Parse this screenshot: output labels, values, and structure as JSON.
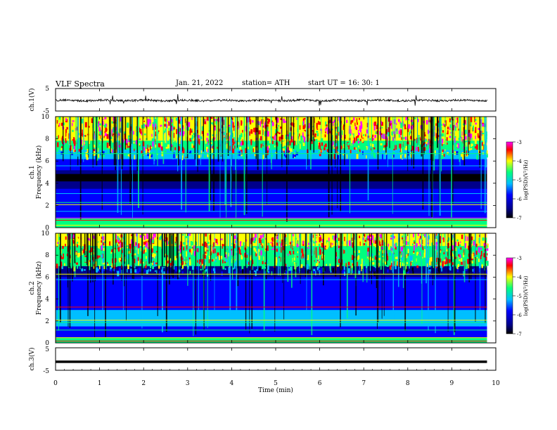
{
  "header": {
    "title": "VLF  Spectra",
    "date": "Jan. 21, 2022",
    "station": "station= ATH",
    "start_ut": "start  UT  =    16: 30: 1"
  },
  "chart_data": [
    {
      "type": "line",
      "panel": "ch1-waveform",
      "ylabel": "ch.1(V)",
      "yticks": [
        "5",
        "-5"
      ],
      "ylim": [
        -5,
        5
      ],
      "xlim": [
        0,
        10
      ],
      "data_xmax": 9.8,
      "baseline": -0.3,
      "description_values": "noisy trace around 0 V with spikes"
    },
    {
      "type": "heatmap",
      "panel": "ch1-spectrogram",
      "ylabel": "ch.1\nFrequency (kHz)",
      "ylabel_lines": [
        "ch.1",
        "Frequency (kHz)"
      ],
      "yticks": [
        0,
        2,
        4,
        6,
        8,
        10
      ],
      "ylim": [
        0,
        10
      ],
      "xlim": [
        0,
        10
      ],
      "data_xmax": 9.8,
      "colorbar": {
        "label": "log(PSD)(V²/Hz)",
        "ticks": [
          "-3",
          "-4",
          "-5",
          "-6",
          "-7"
        ],
        "range": [
          -7,
          -3
        ]
      }
    },
    {
      "type": "heatmap",
      "panel": "ch2-spectrogram",
      "ylabel_lines": [
        "ch.2",
        "Frequency (kHz)"
      ],
      "yticks": [
        0,
        2,
        4,
        6,
        8,
        10
      ],
      "ylim": [
        0,
        10
      ],
      "xlim": [
        0,
        10
      ],
      "data_xmax": 9.8,
      "colorbar": {
        "label": "log(PSD)(V²/Hz)",
        "ticks": [
          "-3",
          "-4",
          "-5",
          "-6",
          "-7"
        ],
        "range": [
          -7,
          -3
        ]
      }
    },
    {
      "type": "line",
      "panel": "ch3-waveform",
      "ylabel": "ch.3(V)",
      "yticks": [
        "5",
        "-5"
      ],
      "ylim": [
        -5,
        5
      ],
      "xlim": [
        0,
        10
      ],
      "data_xmax": 9.8,
      "baseline": -1.2
    }
  ],
  "xaxis": {
    "label": "Time  (min)",
    "ticks": [
      "0",
      "1",
      "2",
      "3",
      "4",
      "5",
      "6",
      "7",
      "8",
      "9",
      "10"
    ]
  },
  "colors": {
    "colormap": [
      "#000000",
      "#00008b",
      "#0000ff",
      "#00bfff",
      "#00ff7f",
      "#ffff00",
      "#ff0000",
      "#ff00ff"
    ]
  }
}
